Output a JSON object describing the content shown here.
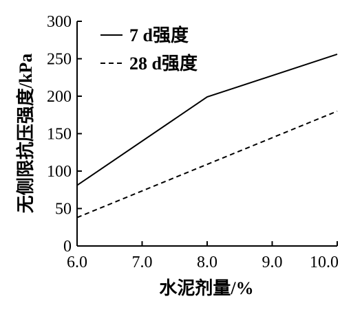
{
  "chart_data": {
    "type": "line",
    "x": [
      6.0,
      8.0,
      10.0
    ],
    "xlim": [
      6.0,
      10.0
    ],
    "ylim": [
      0,
      300
    ],
    "xticks": [
      "6.0",
      "7.0",
      "8.0",
      "9.0",
      "10.0"
    ],
    "yticks": [
      "0",
      "50",
      "100",
      "150",
      "200",
      "250",
      "300"
    ],
    "xlabel": "水泥剂量/%",
    "ylabel": "无侧限抗压强度/kPa",
    "legend_position": "top-left",
    "grid": false,
    "series": [
      {
        "name": "7 d强度",
        "style": "solid",
        "color": "#000000",
        "x": [
          6.0,
          8.0,
          10.0
        ],
        "values": [
          81,
          199,
          256
        ]
      },
      {
        "name": "28 d强度",
        "style": "dashed",
        "color": "#000000",
        "x": [
          6.0,
          10.0
        ],
        "values": [
          38,
          180
        ]
      }
    ]
  }
}
